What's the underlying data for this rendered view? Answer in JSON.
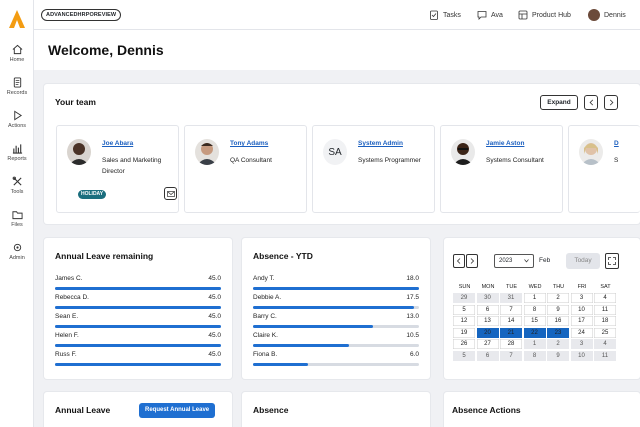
{
  "nav": [
    {
      "label": "Home",
      "icon": "home-icon"
    },
    {
      "label": "Records",
      "icon": "records-icon"
    },
    {
      "label": "Actions",
      "icon": "actions-icon"
    },
    {
      "label": "Reports",
      "icon": "reports-icon"
    },
    {
      "label": "Tools",
      "icon": "tools-icon"
    },
    {
      "label": "Files",
      "icon": "files-icon"
    },
    {
      "label": "Admin",
      "icon": "admin-icon"
    }
  ],
  "topbar": {
    "preview_label": "ADVANCEDHRPOREVIEW",
    "tasks": "Tasks",
    "ava": "Ava",
    "product_hub": "Product Hub",
    "user": "Dennis"
  },
  "page": {
    "title": "Welcome, Dennis"
  },
  "team": {
    "title": "Your team",
    "expand": "Expand",
    "members": [
      {
        "name": "Joe Abara",
        "role": "Sales and Marketing Director",
        "badge": "HOLIDAY"
      },
      {
        "name": "Tony Adams",
        "role": "QA Consultant"
      },
      {
        "name": "System Admin",
        "role": "Systems Programmer",
        "initials": "SA"
      },
      {
        "name": "Jamie Aston",
        "role": "Systems Consultant"
      },
      {
        "name": "D",
        "role": "S"
      }
    ]
  },
  "leave": {
    "title": "Annual Leave remaining",
    "rows": [
      {
        "name": "James C.",
        "value": "45.0",
        "fraction": 1.0
      },
      {
        "name": "Rebecca D.",
        "value": "45.0",
        "fraction": 1.0
      },
      {
        "name": "Sean E.",
        "value": "45.0",
        "fraction": 1.0
      },
      {
        "name": "Helen F.",
        "value": "45.0",
        "fraction": 1.0
      },
      {
        "name": "Russ F.",
        "value": "45.0",
        "fraction": 1.0
      }
    ]
  },
  "absence": {
    "title": "Absence - YTD",
    "rows": [
      {
        "name": "Andy T.",
        "value": "18.0",
        "fraction": 1.0
      },
      {
        "name": "Debbie A.",
        "value": "17.5",
        "fraction": 0.97
      },
      {
        "name": "Barry C.",
        "value": "13.0",
        "fraction": 0.72
      },
      {
        "name": "Claire K.",
        "value": "10.5",
        "fraction": 0.58
      },
      {
        "name": "Fiona B.",
        "value": "6.0",
        "fraction": 0.33
      }
    ]
  },
  "calendar": {
    "year": "2023",
    "month": "Feb",
    "today": "Today",
    "headers": [
      "SUN",
      "MON",
      "TUE",
      "WED",
      "THU",
      "FRI",
      "SAT"
    ],
    "weeks": [
      [
        {
          "d": "29",
          "t": "other"
        },
        {
          "d": "30",
          "t": "other"
        },
        {
          "d": "31",
          "t": "other"
        },
        {
          "d": "1",
          "t": "cur"
        },
        {
          "d": "2",
          "t": "cur"
        },
        {
          "d": "3",
          "t": "cur"
        },
        {
          "d": "4",
          "t": "cur"
        }
      ],
      [
        {
          "d": "5",
          "t": "cur"
        },
        {
          "d": "6",
          "t": "cur"
        },
        {
          "d": "7",
          "t": "cur"
        },
        {
          "d": "8",
          "t": "cur"
        },
        {
          "d": "9",
          "t": "cur"
        },
        {
          "d": "10",
          "t": "cur"
        },
        {
          "d": "11",
          "t": "cur"
        }
      ],
      [
        {
          "d": "12",
          "t": "cur"
        },
        {
          "d": "13",
          "t": "cur"
        },
        {
          "d": "14",
          "t": "cur"
        },
        {
          "d": "15",
          "t": "cur"
        },
        {
          "d": "16",
          "t": "cur"
        },
        {
          "d": "17",
          "t": "cur"
        },
        {
          "d": "18",
          "t": "cur"
        }
      ],
      [
        {
          "d": "19",
          "t": "cur"
        },
        {
          "d": "20",
          "t": "sel"
        },
        {
          "d": "21",
          "t": "sel"
        },
        {
          "d": "22",
          "t": "sel"
        },
        {
          "d": "23",
          "t": "sel"
        },
        {
          "d": "24",
          "t": "cur"
        },
        {
          "d": "25",
          "t": "cur"
        }
      ],
      [
        {
          "d": "26",
          "t": "cur"
        },
        {
          "d": "27",
          "t": "cur"
        },
        {
          "d": "28",
          "t": "cur"
        },
        {
          "d": "1",
          "t": "other"
        },
        {
          "d": "2",
          "t": "other"
        },
        {
          "d": "3",
          "t": "other"
        },
        {
          "d": "4",
          "t": "other"
        }
      ],
      [
        {
          "d": "5",
          "t": "other"
        },
        {
          "d": "6",
          "t": "other"
        },
        {
          "d": "7",
          "t": "other"
        },
        {
          "d": "8",
          "t": "other"
        },
        {
          "d": "9",
          "t": "other"
        },
        {
          "d": "10",
          "t": "other"
        },
        {
          "d": "11",
          "t": "other"
        }
      ]
    ]
  },
  "bottom": {
    "annual_leave": "Annual Leave",
    "request_leave": "Request Annual Leave",
    "absence": "Absence",
    "absence_actions": "Absence Actions"
  },
  "colors": {
    "accent": "#1f6fd1",
    "logo": "#f39c12",
    "badge": "#1b6e7e"
  }
}
